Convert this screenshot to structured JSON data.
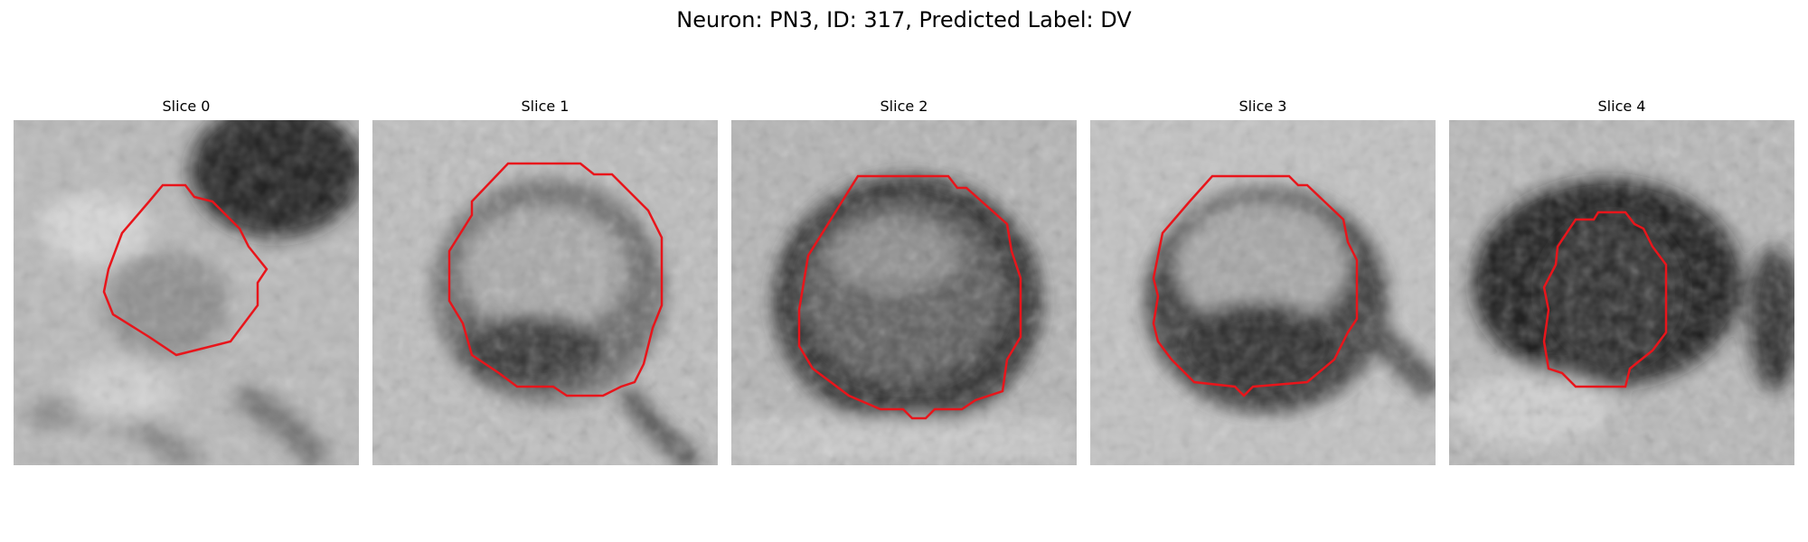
{
  "figure": {
    "title": "Neuron: PN3, ID: 317, Predicted Label: DV",
    "panels": [
      {
        "title": "Slice 0",
        "image_description_icon": "grayscale-microscopy-tile",
        "contour_color": "#e8151b"
      },
      {
        "title": "Slice 1",
        "image_description_icon": "grayscale-microscopy-tile",
        "contour_color": "#e8151b"
      },
      {
        "title": "Slice 2",
        "image_description_icon": "grayscale-microscopy-tile",
        "contour_color": "#e8151b"
      },
      {
        "title": "Slice 3",
        "image_description_icon": "grayscale-microscopy-tile",
        "contour_color": "#e8151b"
      },
      {
        "title": "Slice 4",
        "image_description_icon": "grayscale-microscopy-tile",
        "contour_color": "#e8151b"
      }
    ]
  }
}
